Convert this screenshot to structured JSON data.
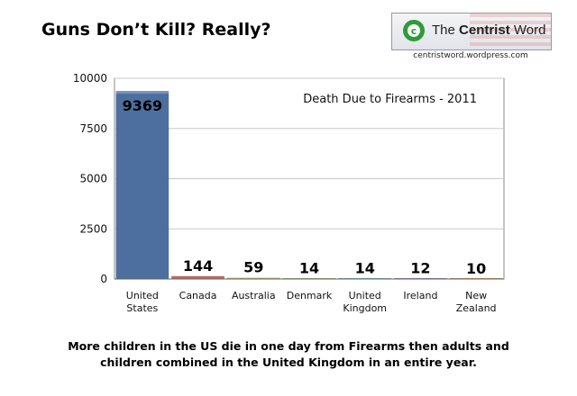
{
  "headline": "Guns Don’t Kill?  Really?",
  "logo": {
    "brand_prefix": "The ",
    "brand_bold": "Centrist",
    "brand_suffix": " Word",
    "symbol": "c",
    "url": "centristword.wordpress.com",
    "accent": "#2e9b3a"
  },
  "chart_data": {
    "type": "bar",
    "title": "Death Due to Firearms - 2011",
    "categories": [
      "United States",
      "Canada",
      "Australia",
      "Denmark",
      "United Kingdom",
      "Ireland",
      "New Zealand"
    ],
    "category_lines": [
      [
        "United",
        "States"
      ],
      [
        "Canada"
      ],
      [
        "Australia"
      ],
      [
        "Denmark"
      ],
      [
        "United",
        "Kingdom"
      ],
      [
        "Ireland"
      ],
      [
        "New",
        "Zealand"
      ]
    ],
    "values": [
      9369,
      144,
      59,
      14,
      14,
      12,
      10
    ],
    "data_labels": [
      "9369",
      "144",
      "59",
      "14",
      "14",
      "12",
      "10"
    ],
    "bar_colors": [
      "#4d6f9f",
      "#a33a30",
      "#a08c2c",
      "#6f9a46",
      "#3d8a88",
      "#6b4e8a",
      "#b06a2e"
    ],
    "ylim": [
      0,
      10000
    ],
    "yticks": [
      0,
      2500,
      5000,
      7500,
      10000
    ],
    "grid": true,
    "xlabel": "",
    "ylabel": ""
  },
  "caption_lines": [
    "More children in the US die in one day from Firearms then adults and",
    "children combined in the United Kingdom in an entire year."
  ]
}
